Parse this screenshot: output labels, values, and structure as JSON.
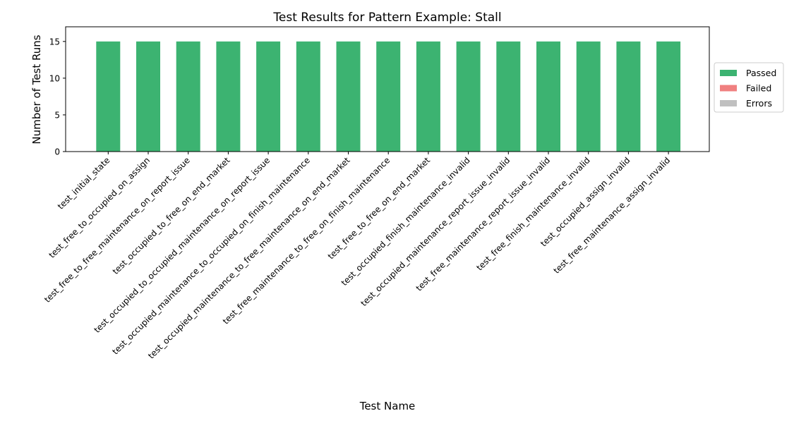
{
  "chart_data": {
    "type": "bar",
    "stacked": true,
    "title": "Test Results for Pattern Example: Stall",
    "xlabel": "Test Name",
    "ylabel": "Number of Test Runs",
    "ylim": [
      0,
      17
    ],
    "yticks": [
      0,
      5,
      10,
      15
    ],
    "grid": false,
    "legend_position": "right",
    "categories": [
      "test_initial_state",
      "test_free_to_occupied_on_assign",
      "test_free_to_free_maintenance_on_report_issue",
      "test_occupied_to_free_on_end_market",
      "test_occupied_to_occupied_maintenance_on_report_issue",
      "test_occupied_maintenance_to_occupied_on_finish_maintenance",
      "test_occupied_maintenance_to_free_maintenance_on_end_market",
      "test_free_maintenance_to_free_on_finish_maintenance",
      "test_free_to_free_on_end_market",
      "test_occupied_finish_maintenance_invalid",
      "test_occupied_maintenance_report_issue_invalid",
      "test_free_maintenance_report_issue_invalid",
      "test_free_finish_maintenance_invalid",
      "test_occupied_assign_invalid",
      "test_free_maintenance_assign_invalid"
    ],
    "series": [
      {
        "name": "Passed",
        "color": "#3cb371",
        "values": [
          15,
          15,
          15,
          15,
          15,
          15,
          15,
          15,
          15,
          15,
          15,
          15,
          15,
          15,
          15
        ]
      },
      {
        "name": "Failed",
        "color": "#f08080",
        "values": [
          0,
          0,
          0,
          0,
          0,
          0,
          0,
          0,
          0,
          0,
          0,
          0,
          0,
          0,
          0
        ]
      },
      {
        "name": "Errors",
        "color": "#c0c0c0",
        "values": [
          0,
          0,
          0,
          0,
          0,
          0,
          0,
          0,
          0,
          0,
          0,
          0,
          0,
          0,
          0
        ]
      }
    ]
  }
}
